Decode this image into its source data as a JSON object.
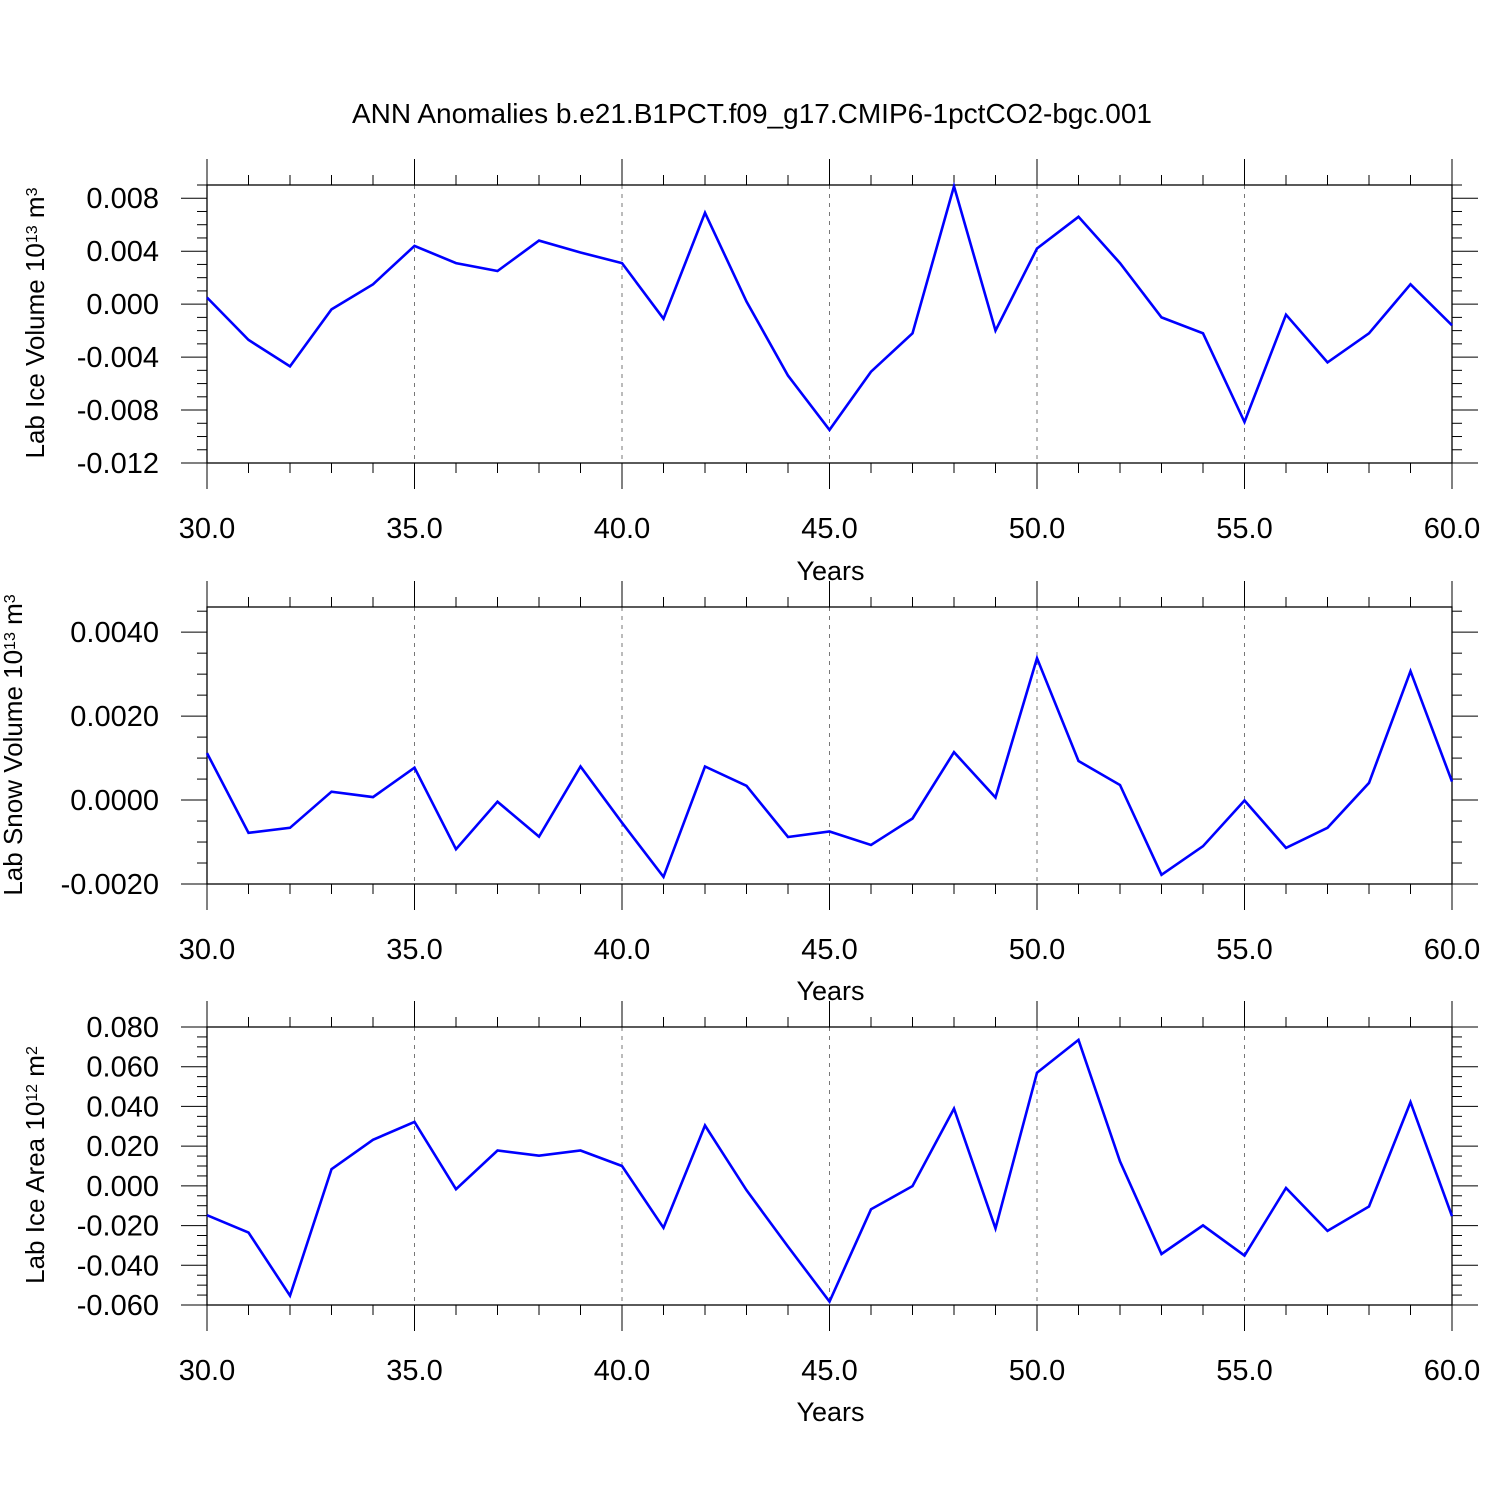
{
  "figure": {
    "title": "ANN Anomalies b.e21.B1PCT.f09_g17.CMIP6-1pctCO2-bgc.001",
    "line_color": "#0000ff"
  },
  "chart_data": [
    {
      "type": "line",
      "ylabel": {
        "name": "Lab Ice Volume 10",
        "exp": "13",
        "unit": " m",
        "unit_exp": "3"
      },
      "xlabel": "Years",
      "xlim": [
        30,
        60
      ],
      "ylim": [
        -0.012,
        0.009
      ],
      "xticks": [
        30,
        35,
        40,
        45,
        50,
        55,
        60
      ],
      "xticklabels": [
        "30.0",
        "35.0",
        "40.0",
        "45.0",
        "50.0",
        "55.0",
        "60.0"
      ],
      "yticks": [
        -0.012,
        -0.008,
        -0.004,
        0.0,
        0.004,
        0.008
      ],
      "yticklabels": [
        "-0.012",
        "-0.008",
        "-0.004",
        "0.000",
        "0.004",
        "0.008"
      ],
      "x": [
        30,
        31,
        32,
        33,
        34,
        35,
        36,
        37,
        38,
        39,
        40,
        41,
        42,
        43,
        44,
        45,
        46,
        47,
        48,
        49,
        50,
        51,
        52,
        53,
        54,
        55,
        56,
        57,
        58,
        59,
        60
      ],
      "series": [
        {
          "values": [
            0.0005,
            -0.0027,
            -0.0047,
            -0.0004,
            0.0015,
            0.0044,
            0.0031,
            0.0025,
            0.0048,
            0.0039,
            0.0031,
            -0.0011,
            0.0069,
            0.0002,
            -0.0054,
            -0.0095,
            -0.0051,
            -0.0022,
            0.0089,
            -0.002,
            0.0042,
            0.0066,
            0.0031,
            -0.001,
            -0.0022,
            -0.0089,
            -0.0008,
            -0.0044,
            -0.0022,
            0.0015,
            -0.0016
          ]
        }
      ]
    },
    {
      "type": "line",
      "ylabel": {
        "name": "Lab Snow Volume 10",
        "exp": "13",
        "unit": " m",
        "unit_exp": "3"
      },
      "xlabel": "Years",
      "xlim": [
        30,
        60
      ],
      "ylim": [
        -0.002,
        0.0046
      ],
      "xticks": [
        30,
        35,
        40,
        45,
        50,
        55,
        60
      ],
      "xticklabels": [
        "30.0",
        "35.0",
        "40.0",
        "45.0",
        "50.0",
        "55.0",
        "60.0"
      ],
      "yticks": [
        -0.002,
        0.0,
        0.002,
        0.004
      ],
      "yticklabels": [
        "-0.0020",
        "0.0000",
        "0.0020",
        "0.0040"
      ],
      "x": [
        30,
        31,
        32,
        33,
        34,
        35,
        36,
        37,
        38,
        39,
        40,
        41,
        42,
        43,
        44,
        45,
        46,
        47,
        48,
        49,
        50,
        51,
        52,
        53,
        54,
        55,
        56,
        57,
        58,
        59,
        60
      ],
      "series": [
        {
          "values": [
            0.00112,
            -0.00078,
            -0.00066,
            0.0002,
            7e-05,
            0.00077,
            -0.00117,
            -4e-05,
            -0.00087,
            0.0008,
            -0.00054,
            -0.00183,
            0.0008,
            0.00034,
            -0.00088,
            -0.00075,
            -0.00107,
            -0.00044,
            0.00114,
            6e-05,
            0.00338,
            0.00093,
            0.00036,
            -0.00178,
            -0.0011,
            -1e-05,
            -0.00114,
            -0.00066,
            0.00041,
            0.00307,
            0.00044
          ]
        }
      ]
    },
    {
      "type": "line",
      "ylabel": {
        "name": "Lab Ice Area 10",
        "exp": "12",
        "unit": " m",
        "unit_exp": "2"
      },
      "xlabel": "Years",
      "xlim": [
        30,
        60
      ],
      "ylim": [
        -0.06,
        0.08
      ],
      "xticks": [
        30,
        35,
        40,
        45,
        50,
        55,
        60
      ],
      "xticklabels": [
        "30.0",
        "35.0",
        "40.0",
        "45.0",
        "50.0",
        "55.0",
        "60.0"
      ],
      "yticks": [
        -0.06,
        -0.04,
        -0.02,
        0.0,
        0.02,
        0.04,
        0.06,
        0.08
      ],
      "yticklabels": [
        "-0.060",
        "-0.040",
        "-0.020",
        "0.000",
        "0.020",
        "0.040",
        "0.060",
        "0.080"
      ],
      "x": [
        30,
        31,
        32,
        33,
        34,
        35,
        36,
        37,
        38,
        39,
        40,
        41,
        42,
        43,
        44,
        45,
        46,
        47,
        48,
        49,
        50,
        51,
        52,
        53,
        54,
        55,
        56,
        57,
        58,
        59,
        60
      ],
      "series": [
        {
          "values": [
            -0.0148,
            -0.0235,
            -0.0553,
            0.0084,
            0.0232,
            0.0322,
            -0.0017,
            0.0178,
            0.0152,
            0.0178,
            0.01,
            -0.0211,
            0.0304,
            -0.0022,
            -0.0306,
            -0.0583,
            -0.0118,
            -0.0001,
            0.0389,
            -0.0214,
            0.057,
            0.0735,
            0.0123,
            -0.0343,
            -0.0199,
            -0.0351,
            -0.0011,
            -0.0227,
            -0.0104,
            0.0422,
            -0.0153
          ]
        }
      ]
    }
  ]
}
